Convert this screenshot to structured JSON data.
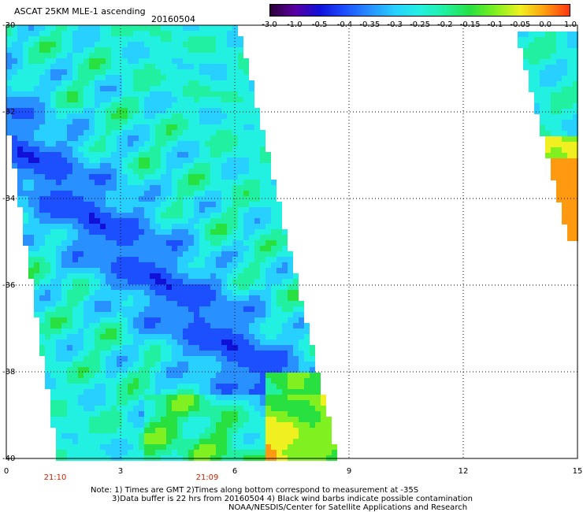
{
  "header": {
    "title": "ASCAT 25KM MLE-1 ascending",
    "date": "20160504"
  },
  "colorbar": {
    "labels": [
      "-3.0",
      "-1.0",
      "-0.5",
      "-0.4",
      "-0.35",
      "-0.3",
      "-0.25",
      "-0.2",
      "-0.15",
      "-0.1",
      "-0.05",
      "0.0",
      "1.0"
    ],
    "colors": [
      "#2a0033",
      "#5a00a0",
      "#1010d8",
      "#1c50ff",
      "#2890ff",
      "#28d0ff",
      "#22f0e0",
      "#20f0a0",
      "#28e040",
      "#80f020",
      "#f0f020",
      "#ff9a10",
      "#ff3010"
    ]
  },
  "axes": {
    "lat_labels": [
      "-30",
      "-32",
      "-34",
      "-36",
      "-38",
      "-40"
    ],
    "lon_labels": [
      "0",
      "3",
      "6",
      "9",
      "12",
      "15"
    ],
    "lon_range": [
      0,
      15
    ],
    "lat_range": [
      -40,
      -30
    ],
    "grid": true
  },
  "times": [
    "21:10",
    "21:09"
  ],
  "notes": {
    "line1": "Note: 1) Times are GMT 2)Times along bottom correspond to measurement at -35S",
    "line2": "3)Data buffer is 22 hrs from 20160504 4) Black wind barbs indicate possible contamination",
    "line3": "NOAA/NESDIS/Center for Satellite Applications and Research"
  }
}
